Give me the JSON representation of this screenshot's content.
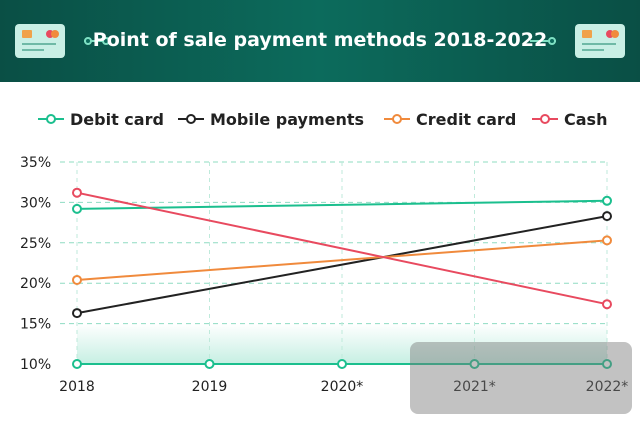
{
  "header": {
    "title": "Point of sale payment methods 2018-2022"
  },
  "colors": {
    "debit": "#1bbf8e",
    "mobile": "#222222",
    "credit": "#f08a3c",
    "cash": "#e84a5f"
  },
  "chart_data": {
    "type": "line",
    "title": "Point of sale payment methods 2018-2022",
    "x": [
      "2018",
      "2019",
      "2020*",
      "2021*",
      "2022*"
    ],
    "ylim": [
      10,
      35
    ],
    "yticks": [
      "10%",
      "15%",
      "20%",
      "25%",
      "30%",
      "35%"
    ],
    "legend_position": "top",
    "series": [
      {
        "name": "Debit card",
        "color": "#1bbf8e",
        "points": [
          [
            0,
            29.2
          ],
          [
            4,
            30.2
          ]
        ]
      },
      {
        "name": "Mobile payments",
        "color": "#222222",
        "points": [
          [
            0,
            16.3
          ],
          [
            4,
            28.3
          ]
        ]
      },
      {
        "name": "Credit card",
        "color": "#f08a3c",
        "points": [
          [
            0,
            20.4
          ],
          [
            4,
            25.3
          ]
        ]
      },
      {
        "name": "Cash",
        "color": "#e84a5f",
        "points": [
          [
            0,
            31.2
          ],
          [
            4,
            17.4
          ]
        ]
      }
    ],
    "baseline_markers": [
      10,
      10,
      10,
      10,
      10
    ]
  }
}
